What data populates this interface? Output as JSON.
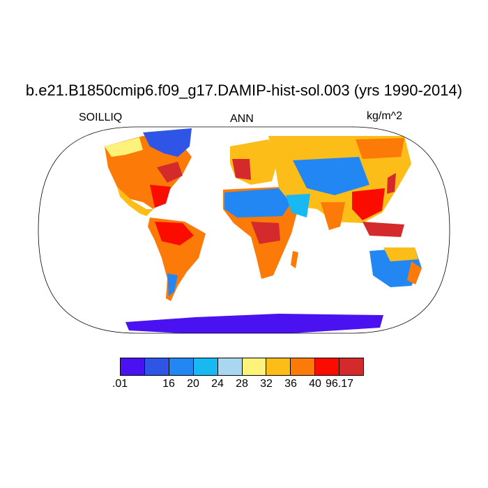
{
  "title": "b.e21.B1850cmip6.f09_g17.DAMIP-hist-sol.003 (yrs 1990-2014)",
  "variable": "SOILLIQ",
  "season": "ANN",
  "units": "kg/m^2",
  "colorbar": {
    "colors": [
      "#4a12f0",
      "#2e55e6",
      "#2387f3",
      "#18b8f2",
      "#a8d7ef",
      "#fdf27a",
      "#fdbd18",
      "#fb7a08",
      "#fb0c00",
      "#d42a2b"
    ],
    "tick_labels": [
      ".01",
      "16",
      "20",
      "24",
      "28",
      "32",
      "36",
      "40",
      "96.17"
    ]
  }
}
